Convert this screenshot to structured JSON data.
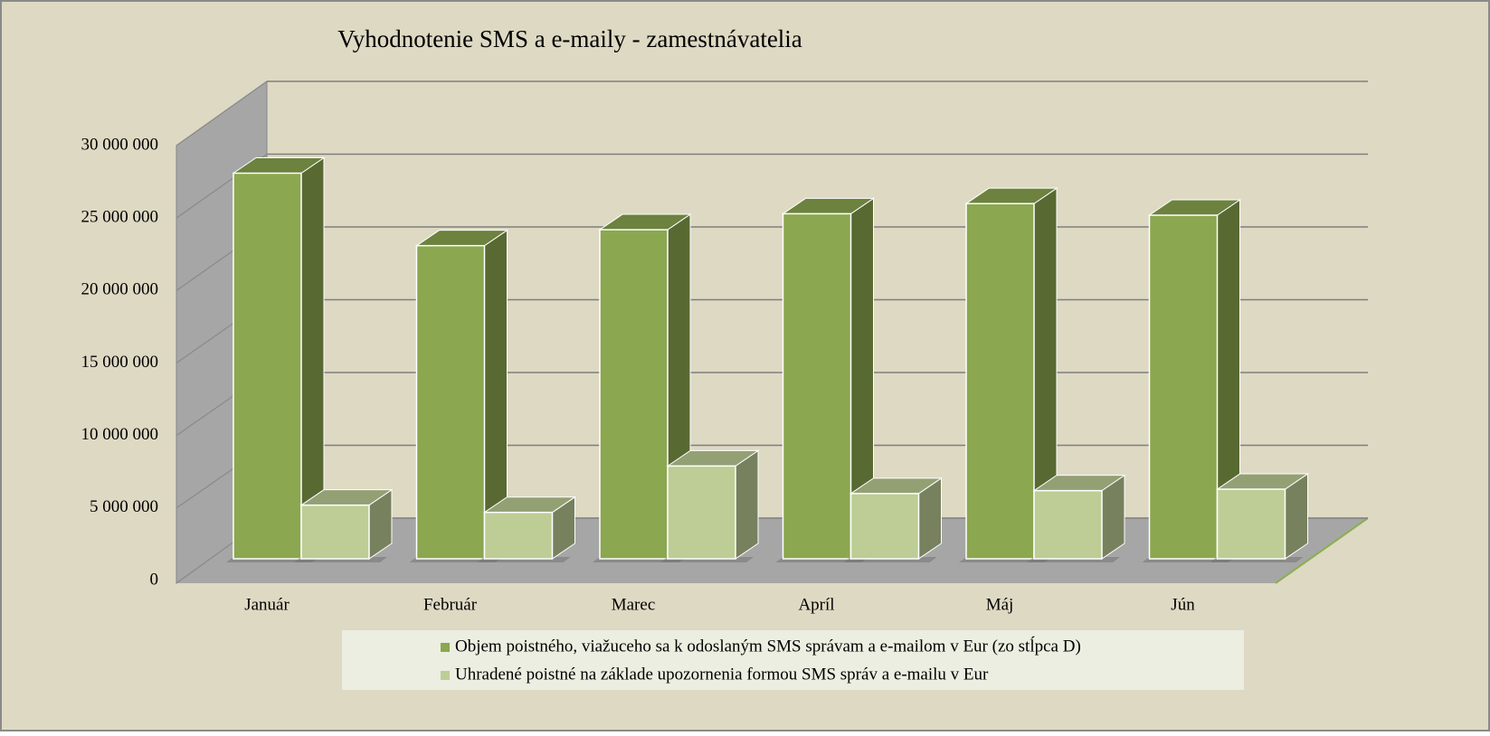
{
  "chart_data": {
    "type": "bar3d",
    "title": "Vyhodnotenie  SMS a e-maily  - zamestnávatelia",
    "categories": [
      "Január",
      "Február",
      "Marec",
      "Apríl",
      "Máj",
      "Jún"
    ],
    "series": [
      {
        "name": "Objem poistného, viažuceho sa k odoslaným SMS správam a e-mailom v Eur (zo stĺpca D)",
        "color": "#8ba74f",
        "values": [
          26600000,
          21600000,
          22700000,
          23800000,
          24500000,
          23700000
        ]
      },
      {
        "name": "Uhradené poistné na základe upozornenia formou SMS správ a e-mailu v Eur",
        "color": "#bdcd95",
        "values": [
          3700000,
          3200000,
          6400000,
          4500000,
          4700000,
          4800000
        ]
      }
    ],
    "ylim": [
      0,
      30000000
    ],
    "yticks": [
      0,
      {
        "value": 5000000,
        "label": "5 000 000"
      },
      {
        "value": 10000000,
        "label": "10 000 000"
      },
      {
        "value": 15000000,
        "label": "15 000 000"
      },
      {
        "value": 20000000,
        "label": "20 000 000"
      },
      {
        "value": 25000000,
        "label": "25 000 000"
      },
      {
        "value": 30000000,
        "label": "30 000 000"
      }
    ],
    "grid": true,
    "legend": "bottom"
  }
}
